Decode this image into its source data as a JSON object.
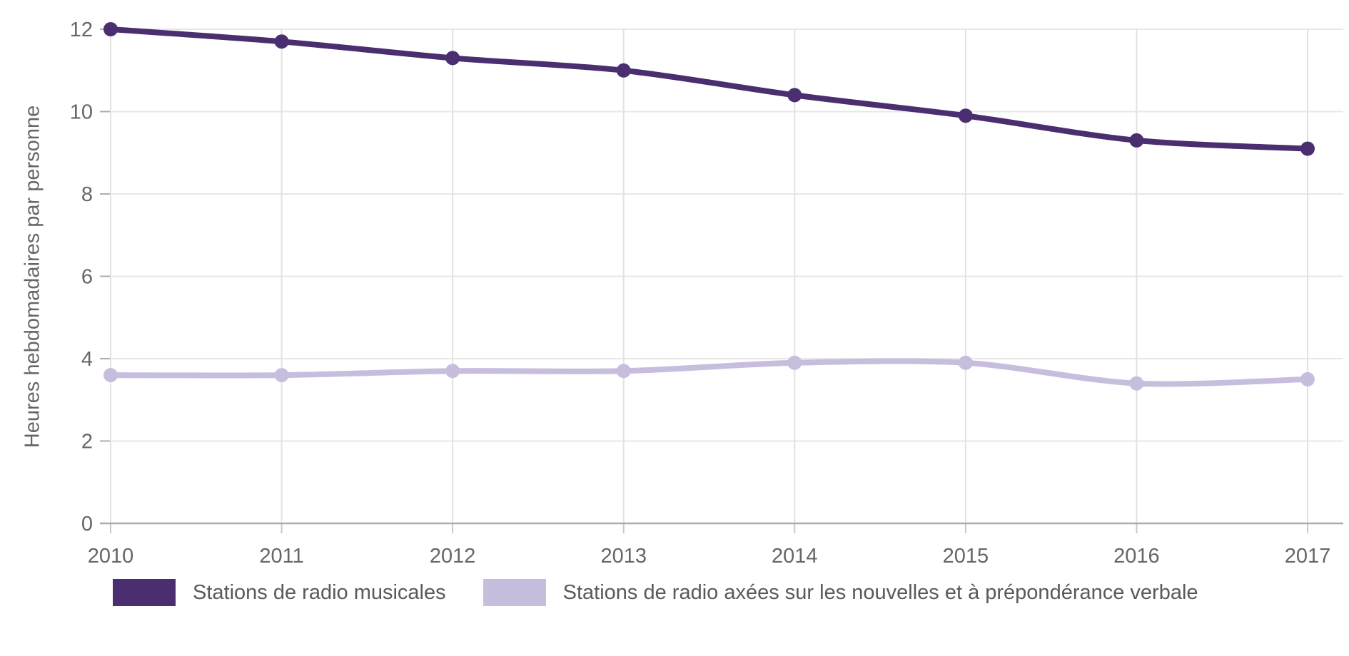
{
  "chart_data": {
    "type": "line",
    "x": [
      "2010",
      "2011",
      "2012",
      "2013",
      "2014",
      "2015",
      "2016",
      "2017"
    ],
    "series": [
      {
        "name": "Stations de radio musicales",
        "color": "#4b2e6f",
        "values": [
          12.0,
          11.7,
          11.3,
          11.0,
          10.4,
          9.9,
          9.3,
          9.1
        ]
      },
      {
        "name": "Stations de radio axées sur les nouvelles et à prépondérance verbale",
        "color": "#c7bedd",
        "values": [
          3.6,
          3.6,
          3.7,
          3.7,
          3.9,
          3.9,
          3.4,
          3.5
        ]
      }
    ],
    "title": "",
    "xlabel": "",
    "ylabel": "Heures hebdomadaires par personne",
    "ylim": [
      0,
      12
    ],
    "yticks": [
      0,
      2,
      4,
      6,
      8,
      10,
      12
    ],
    "grid": true,
    "legend_position": "bottom"
  },
  "colors": {
    "grid_horizontal": "#e7e7e7",
    "grid_vertical": "#e2e2e2",
    "axis_line": "#ababab",
    "y_tick": "#adadad",
    "x_tick": "#c9c9c9",
    "tick_label": "#666666",
    "legend_text": "#58595b",
    "background": "#ffffff"
  }
}
